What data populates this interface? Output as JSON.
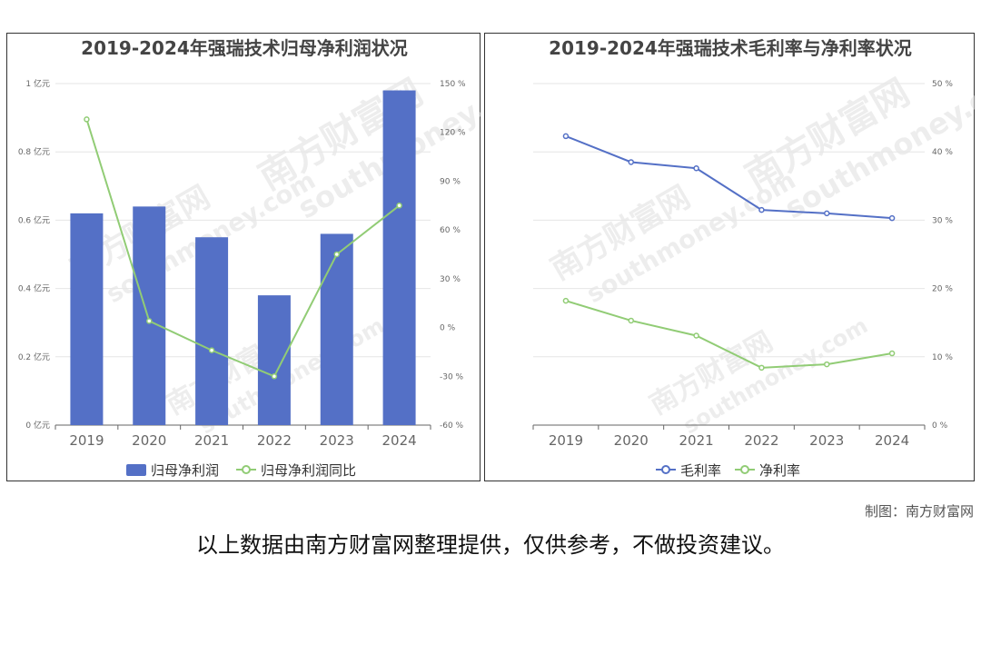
{
  "credit": "制图：南方财富网",
  "disclaimer": "以上数据由南方财富网整理提供，仅供参考，不做投资建议。",
  "watermark": {
    "cn": "南方财富网",
    "en": "southmoney.com"
  },
  "colors": {
    "bar": "#5470c6",
    "line_green": "#91cc75",
    "line_blue": "#5470c6",
    "grid": "#e6e6e6",
    "axis": "#666666"
  },
  "chart_data": [
    {
      "type": "bar",
      "title": "2019-2024年强瑞技术归母净利润状况",
      "categories": [
        "2019",
        "2020",
        "2021",
        "2022",
        "2023",
        "2024"
      ],
      "y_left": {
        "ticks": [
          "0 亿元",
          "0.2 亿元",
          "0.4 亿元",
          "0.6 亿元",
          "0.8 亿元",
          "1 亿元"
        ],
        "range": [
          0,
          1
        ]
      },
      "y_right": {
        "ticks": [
          "-60 %",
          "-30 %",
          "0 %",
          "30 %",
          "60 %",
          "90 %",
          "120 %",
          "150 %"
        ],
        "range": [
          -60,
          150
        ]
      },
      "series": [
        {
          "name": "归母净利润",
          "kind": "bar",
          "axis": "left",
          "values": [
            0.62,
            0.64,
            0.55,
            0.38,
            0.56,
            0.98
          ]
        },
        {
          "name": "归母净利润同比",
          "kind": "line",
          "axis": "right",
          "values": [
            128,
            4,
            -14,
            -30,
            45,
            75
          ]
        }
      ],
      "legend_position": "bottom"
    },
    {
      "type": "line",
      "title": "2019-2024年强瑞技术毛利率与净利率状况",
      "categories": [
        "2019",
        "2020",
        "2021",
        "2022",
        "2023",
        "2024"
      ],
      "y_right": {
        "ticks": [
          "0 %",
          "10 %",
          "20 %",
          "30 %",
          "40 %",
          "50 %"
        ],
        "range": [
          0,
          50
        ]
      },
      "series": [
        {
          "name": "毛利率",
          "values": [
            42.3,
            38.5,
            37.6,
            31.5,
            31.0,
            30.3
          ]
        },
        {
          "name": "净利率",
          "values": [
            18.2,
            15.3,
            13.1,
            8.4,
            8.9,
            10.5
          ]
        }
      ],
      "legend_position": "bottom"
    }
  ]
}
